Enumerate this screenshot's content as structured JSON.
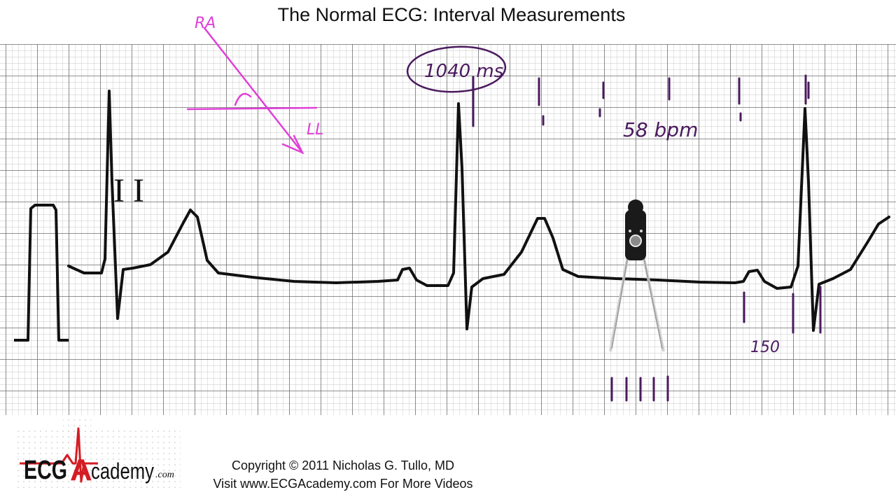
{
  "title": "The Normal ECG:  Interval Measurements",
  "annotations": {
    "lead_label": "I I",
    "ra_label": "RA",
    "ll_label": "LL",
    "interval_label": "1040 ms",
    "rate_label": "58 bpm",
    "rate_number": "150"
  },
  "logo": {
    "text_ecg": "ECG",
    "text_a": "A",
    "text_cademy": "cademy",
    "text_com": ".com"
  },
  "footer": {
    "copyright": "Copyright © 2011 Nicholas G. Tullo, MD",
    "visit": "Visit www.ECGAcademy.com For More Videos"
  },
  "colors": {
    "grid": "#8a8a8a",
    "trace": "#111111",
    "marker": "#4a1a5e",
    "axis_pen": "#e040d8",
    "logo_red": "#d41c24"
  }
}
